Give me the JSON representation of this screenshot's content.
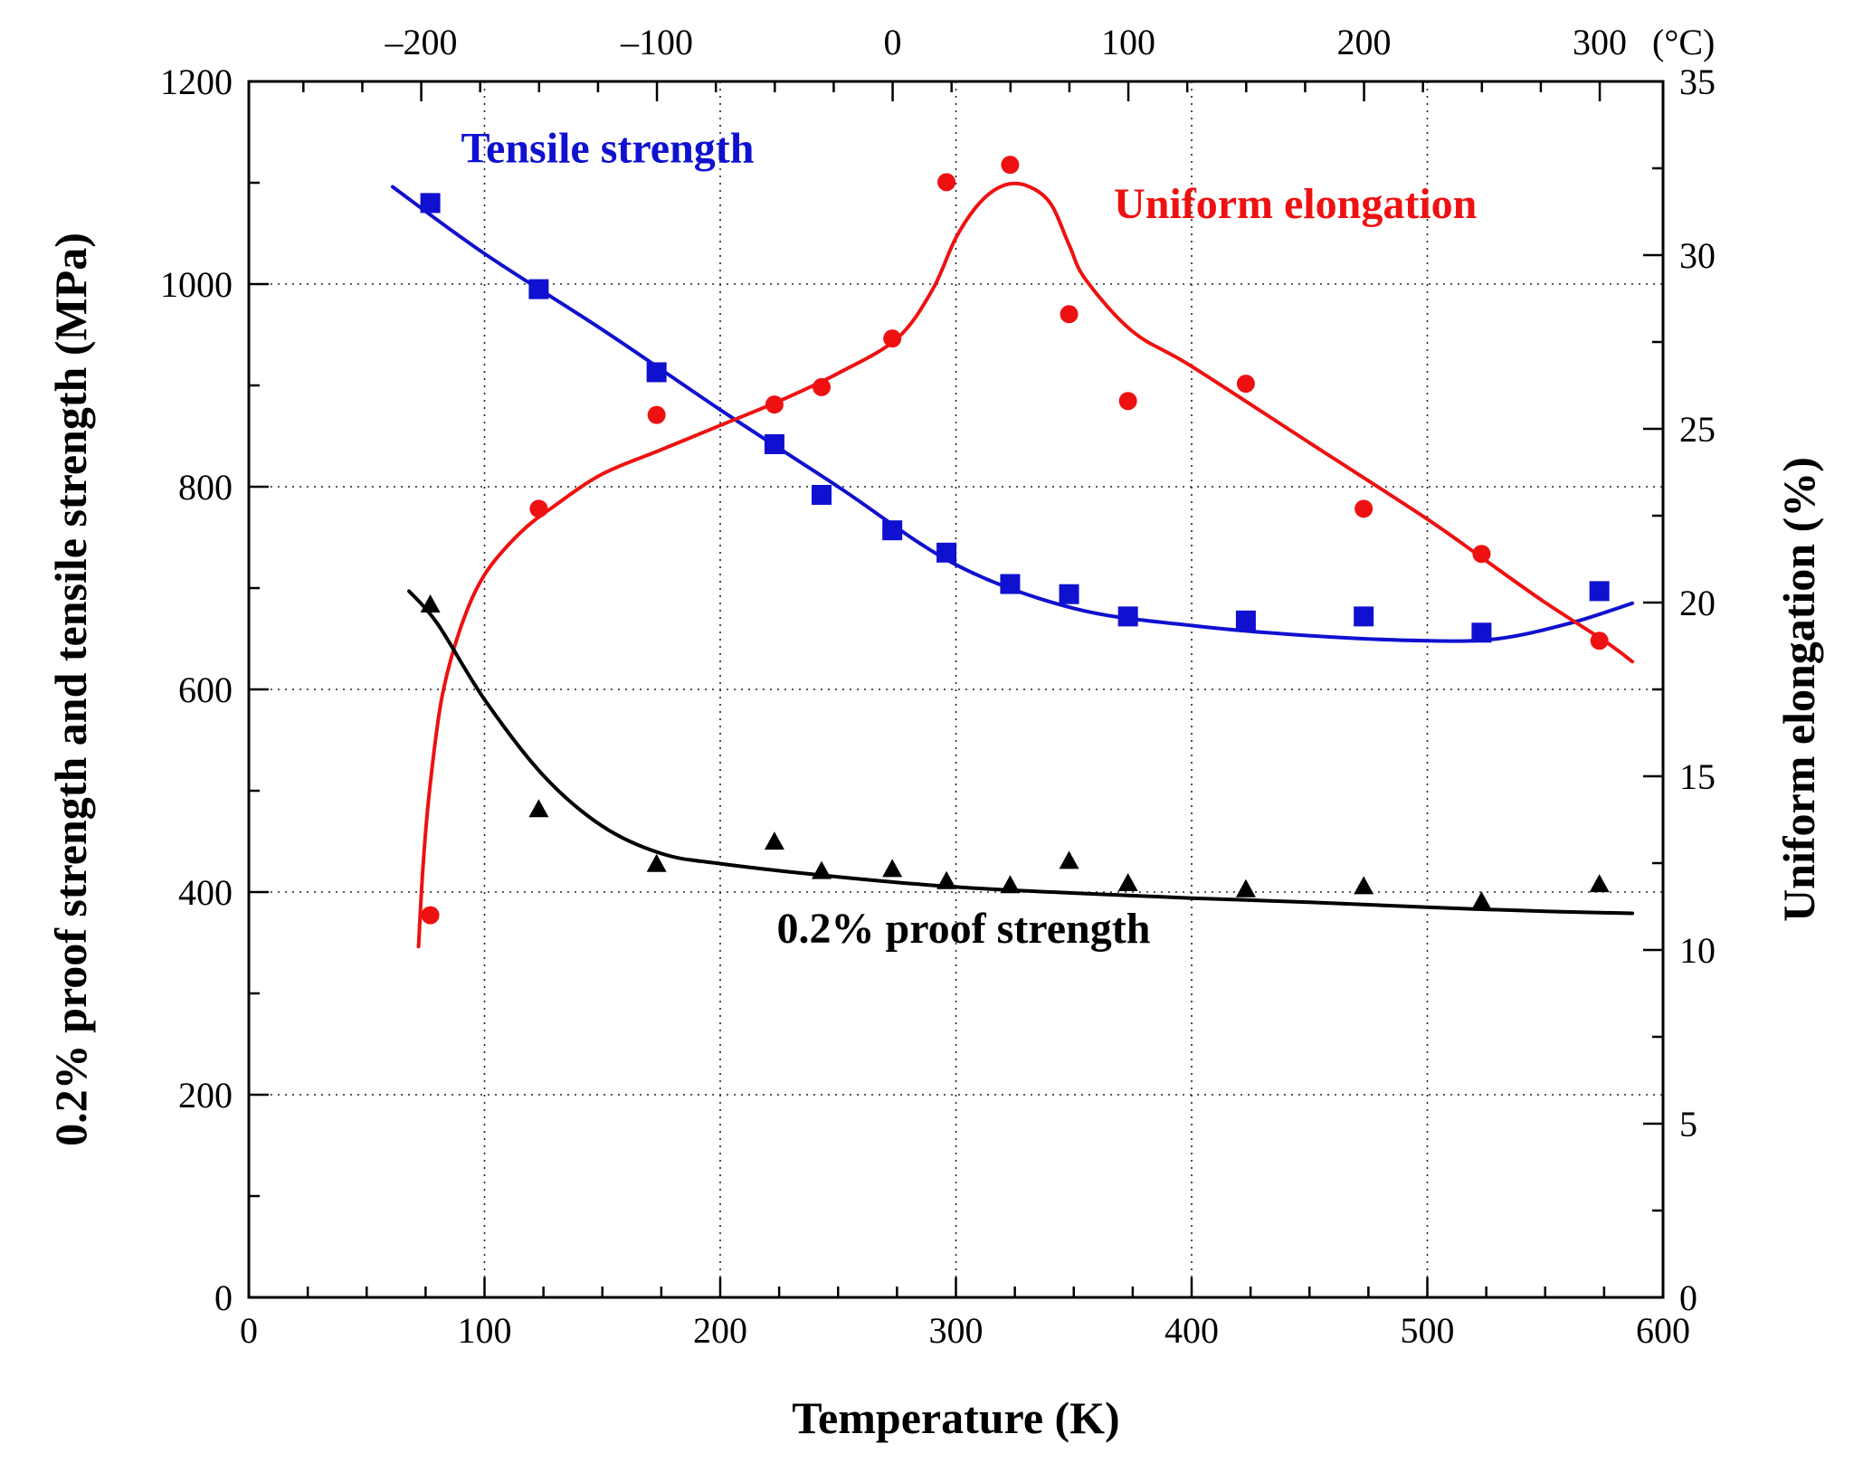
{
  "chart_data": {
    "type": "scatter",
    "x_axis": {
      "label": "Temperature (K)",
      "range": [
        0,
        600
      ],
      "ticks": [
        "0",
        "100",
        "200",
        "300",
        "400",
        "500",
        "600"
      ]
    },
    "x2_axis": {
      "unit_label": "(°C)",
      "range_celsius": [
        -273.15,
        326.85
      ],
      "ticks": [
        {
          "value": -200,
          "label": "–200"
        },
        {
          "value": -100,
          "label": "–100"
        },
        {
          "value": 0,
          "label": "0"
        },
        {
          "value": 100,
          "label": "100"
        },
        {
          "value": 200,
          "label": "200"
        },
        {
          "value": 300,
          "label": "300"
        }
      ]
    },
    "y_axis": {
      "label": "0.2% proof strength and tensile strength (MPa)",
      "range": [
        0,
        1200
      ],
      "ticks": [
        "0",
        "200",
        "400",
        "600",
        "800",
        "1000",
        "1200"
      ]
    },
    "y2_axis": {
      "label": "Uniform elongation (%)",
      "range": [
        0,
        35
      ],
      "ticks": [
        "0",
        "5",
        "10",
        "15",
        "20",
        "25",
        "30",
        "35"
      ]
    },
    "grid": "dotted",
    "series": [
      {
        "name": "Tensile strength",
        "color": "#1010d0",
        "marker": "square",
        "axis": "left",
        "points": [
          [
            77,
            1080
          ],
          [
            123,
            995
          ],
          [
            173,
            913
          ],
          [
            223,
            842
          ],
          [
            243,
            792
          ],
          [
            273,
            757
          ],
          [
            296,
            735
          ],
          [
            323,
            704
          ],
          [
            348,
            694
          ],
          [
            373,
            672
          ],
          [
            423,
            668
          ],
          [
            473,
            672
          ],
          [
            523,
            656
          ],
          [
            573,
            697
          ]
        ],
        "fit": [
          [
            61,
            1096
          ],
          [
            100,
            1030
          ],
          [
            150,
            955
          ],
          [
            200,
            876
          ],
          [
            250,
            800
          ],
          [
            300,
            723
          ],
          [
            350,
            680
          ],
          [
            400,
            663
          ],
          [
            450,
            653
          ],
          [
            500,
            648
          ],
          [
            530,
            650
          ],
          [
            560,
            665
          ],
          [
            587,
            685
          ]
        ]
      },
      {
        "name": "Uniform elongation",
        "color": "#ee1111",
        "marker": "circle",
        "axis": "right",
        "points": [
          [
            77,
            11.0
          ],
          [
            123,
            22.7
          ],
          [
            173,
            25.4
          ],
          [
            223,
            25.7
          ],
          [
            243,
            26.2
          ],
          [
            273,
            27.6
          ],
          [
            296,
            32.1
          ],
          [
            323,
            32.6
          ],
          [
            348,
            28.3
          ],
          [
            373,
            25.8
          ],
          [
            423,
            26.3
          ],
          [
            473,
            22.7
          ],
          [
            523,
            21.4
          ],
          [
            573,
            18.9
          ]
        ],
        "fit": [
          [
            72,
            10.1
          ],
          [
            74,
            12.5
          ],
          [
            77,
            14.8
          ],
          [
            82,
            17.3
          ],
          [
            90,
            19.3
          ],
          [
            100,
            20.8
          ],
          [
            115,
            22.0
          ],
          [
            130,
            22.8
          ],
          [
            150,
            23.7
          ],
          [
            175,
            24.4
          ],
          [
            200,
            25.1
          ],
          [
            225,
            25.8
          ],
          [
            250,
            26.6
          ],
          [
            275,
            27.6
          ],
          [
            290,
            29.0
          ],
          [
            300,
            30.5
          ],
          [
            310,
            31.5
          ],
          [
            320,
            32.0
          ],
          [
            330,
            32.0
          ],
          [
            340,
            31.5
          ],
          [
            348,
            30.3
          ],
          [
            355,
            29.3
          ],
          [
            375,
            27.8
          ],
          [
            400,
            26.8
          ],
          [
            450,
            24.6
          ],
          [
            500,
            22.4
          ],
          [
            525,
            21.2
          ],
          [
            550,
            20.0
          ],
          [
            575,
            18.9
          ],
          [
            587,
            18.3
          ]
        ]
      },
      {
        "name": "0.2% proof strength",
        "color": "#000000",
        "marker": "triangle",
        "axis": "left",
        "points": [
          [
            77,
            683
          ],
          [
            123,
            481
          ],
          [
            173,
            427
          ],
          [
            223,
            449
          ],
          [
            243,
            420
          ],
          [
            273,
            422
          ],
          [
            296,
            410
          ],
          [
            323,
            406
          ],
          [
            348,
            430
          ],
          [
            373,
            408
          ],
          [
            423,
            402
          ],
          [
            473,
            405
          ],
          [
            523,
            390
          ],
          [
            573,
            407
          ]
        ],
        "fit": [
          [
            68,
            697
          ],
          [
            80,
            665
          ],
          [
            100,
            590
          ],
          [
            125,
            515
          ],
          [
            150,
            465
          ],
          [
            175,
            438
          ],
          [
            200,
            428
          ],
          [
            250,
            415
          ],
          [
            300,
            405
          ],
          [
            350,
            399
          ],
          [
            400,
            394
          ],
          [
            450,
            390
          ],
          [
            500,
            385
          ],
          [
            550,
            381
          ],
          [
            587,
            379
          ]
        ]
      }
    ],
    "annotations": [
      {
        "text": "Tensile strength",
        "x": 90,
        "y": 1120,
        "color": "#1010d0"
      },
      {
        "text": "Uniform elongation",
        "x": 367,
        "y": 1065,
        "color": "#ee1111"
      },
      {
        "text": "0.2% proof strength",
        "x": 224,
        "y": 350,
        "color": "#000000"
      }
    ]
  }
}
